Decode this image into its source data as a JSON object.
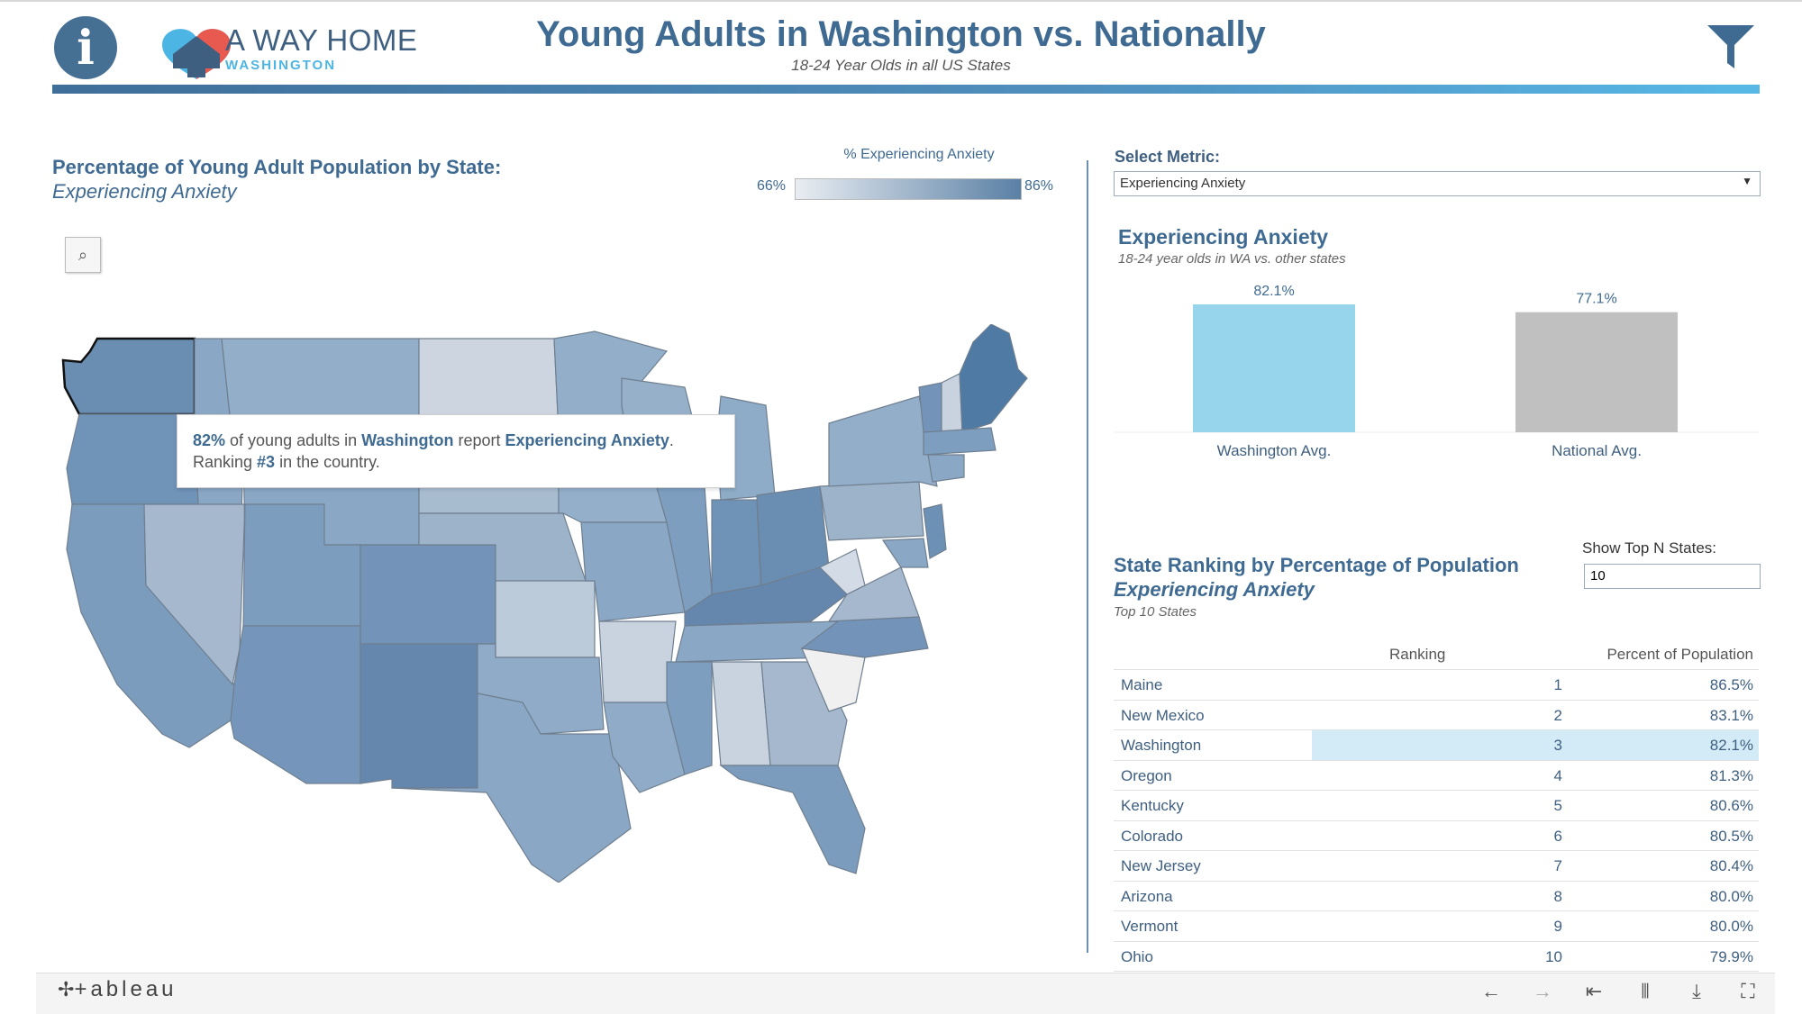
{
  "header": {
    "logo_text": "A WAY HOME",
    "logo_sub": "WASHINGTON",
    "title": "Young Adults in Washington vs. Nationally",
    "subtitle": "18-24 Year Olds in all US States",
    "info_icon": "info-icon",
    "filter_icon": "funnel-filter-icon"
  },
  "map": {
    "title": "Percentage of Young Adult Population by State:",
    "metric": "Experiencing Anxiety",
    "legend_title": "% Experiencing Anxiety",
    "legend_min": "66%",
    "legend_max": "86%",
    "tooltip": {
      "pct": "82%",
      "text1": " of young adults in ",
      "state": "Washington",
      "text2": " report ",
      "metric": "Experiencing Anxiety",
      "text3": ".",
      "rank_prefix": "Ranking ",
      "rank": "#3",
      "rank_suffix": " in the country."
    },
    "colors": {
      "min": "#e9edf2",
      "max": "#5a80a5"
    }
  },
  "select": {
    "label": "Select Metric:",
    "value": "Experiencing Anxiety"
  },
  "comparison": {
    "title": "Experiencing Anxiety",
    "subtitle": "18-24 year olds in WA vs. other states"
  },
  "chart_data": {
    "type": "bar",
    "categories": [
      "Washington Avg.",
      "National Avg."
    ],
    "values": [
      82.1,
      77.1
    ],
    "labels": [
      "82.1%",
      "77.1%"
    ],
    "colors": [
      "#97d5ed",
      "#c0c0c0"
    ],
    "title": "Experiencing Anxiety",
    "subtitle": "18-24 year olds in WA vs. other states",
    "xlabel": "",
    "ylabel": "",
    "ylim": [
      0,
      82.1
    ]
  },
  "ranking": {
    "title": "State Ranking by Percentage of Population",
    "metric": "Experiencing Anxiety",
    "subtitle": "Top 10 States",
    "topn_label": "Show Top N States:",
    "topn_value": "10",
    "col_rank": "Ranking",
    "col_pct": "Percent of Population",
    "rows": [
      {
        "state": "Maine",
        "rank": "1",
        "pct": "86.5%"
      },
      {
        "state": "New Mexico",
        "rank": "2",
        "pct": "83.1%"
      },
      {
        "state": "Washington",
        "rank": "3",
        "pct": "82.1%"
      },
      {
        "state": "Oregon",
        "rank": "4",
        "pct": "81.3%"
      },
      {
        "state": "Kentucky",
        "rank": "5",
        "pct": "80.6%"
      },
      {
        "state": "Colorado",
        "rank": "6",
        "pct": "80.5%"
      },
      {
        "state": "New Jersey",
        "rank": "7",
        "pct": "80.4%"
      },
      {
        "state": "Arizona",
        "rank": "8",
        "pct": "80.0%"
      },
      {
        "state": "Vermont",
        "rank": "9",
        "pct": "80.0%"
      },
      {
        "state": "Ohio",
        "rank": "10",
        "pct": "79.9%"
      }
    ],
    "highlight_color": "#d3ebf7"
  },
  "footer": {
    "brand": "+ableau",
    "icons": [
      "undo-icon",
      "redo-icon",
      "revert-icon",
      "share-icon",
      "download-icon",
      "fullscreen-icon"
    ]
  }
}
